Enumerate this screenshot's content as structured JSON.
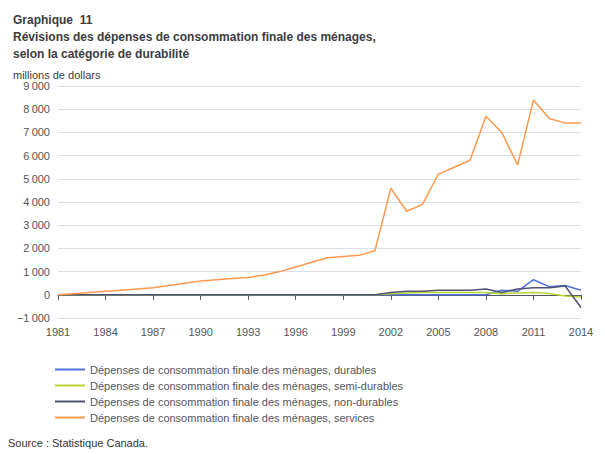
{
  "chart_data": {
    "type": "line",
    "title": [
      "Graphique  11",
      "Révisions des dépenses de consommation finale des ménages,",
      "selon la catégorie de durabilité"
    ],
    "y_label": "millions de dollars",
    "annotations": [
      "Source : Statistique Canada."
    ],
    "x": [
      1981,
      1982,
      1983,
      1984,
      1985,
      1986,
      1987,
      1988,
      1989,
      1990,
      1991,
      1992,
      1993,
      1994,
      1995,
      1996,
      1997,
      1998,
      1999,
      2000,
      2001,
      2002,
      2003,
      2004,
      2005,
      2006,
      2007,
      2008,
      2009,
      2010,
      2011,
      2012,
      2013,
      2014
    ],
    "series": [
      {
        "name": "Dépenses de consommation finale des ménages, durables",
        "values": [
          0,
          0,
          0,
          0,
          0,
          0,
          0,
          0,
          0,
          0,
          0,
          0,
          0,
          0,
          0,
          0,
          0,
          0,
          0,
          0,
          0,
          0,
          0,
          0,
          0,
          0,
          0,
          0,
          200,
          150,
          650,
          350,
          400,
          200
        ]
      },
      {
        "name": "Dépenses de consommation finale des ménages, semi-durables",
        "values": [
          0,
          0,
          0,
          0,
          0,
          0,
          0,
          0,
          0,
          0,
          0,
          0,
          0,
          0,
          0,
          0,
          0,
          0,
          0,
          0,
          0,
          50,
          80,
          100,
          100,
          100,
          100,
          100,
          50,
          80,
          100,
          60,
          -50,
          -100
        ]
      },
      {
        "name": "Dépenses de consommation finale des ménages, non-durables",
        "values": [
          0,
          0,
          0,
          0,
          0,
          0,
          0,
          0,
          0,
          0,
          0,
          0,
          0,
          0,
          0,
          0,
          0,
          0,
          0,
          0,
          0,
          100,
          150,
          150,
          200,
          200,
          200,
          250,
          100,
          250,
          300,
          300,
          380,
          -550
        ]
      },
      {
        "name": "Dépenses de consommation finale des ménages, services",
        "values": [
          0,
          50,
          100,
          150,
          200,
          250,
          300,
          400,
          500,
          600,
          650,
          700,
          750,
          850,
          1000,
          1200,
          1400,
          1600,
          1650,
          1700,
          1900,
          4600,
          3600,
          3900,
          5200,
          5500,
          5800,
          7700,
          7000,
          5600,
          8400,
          7600,
          7400,
          7400
        ]
      }
    ],
    "xlim": [
      1981,
      2014
    ],
    "xticks": [
      1981,
      1984,
      1987,
      1990,
      1993,
      1996,
      1999,
      2002,
      2005,
      2008,
      2011,
      2014
    ],
    "ylim": [
      -1000,
      9000
    ],
    "yticks": [
      {
        "value": -1000,
        "label": "−1 000"
      },
      0,
      {
        "value": 1000,
        "label": "1 000"
      },
      {
        "value": 2000,
        "label": "2 000"
      },
      {
        "value": 3000,
        "label": "3 000"
      },
      {
        "value": 4000,
        "label": "4 000"
      },
      {
        "value": 5000,
        "label": "5 000"
      },
      {
        "value": 6000,
        "label": "6 000"
      },
      {
        "value": 7000,
        "label": "7 000"
      },
      {
        "value": 8000,
        "label": "8 000"
      },
      {
        "value": 9000,
        "label": "9 000"
      }
    ],
    "grid": true,
    "legend": "bottom"
  }
}
